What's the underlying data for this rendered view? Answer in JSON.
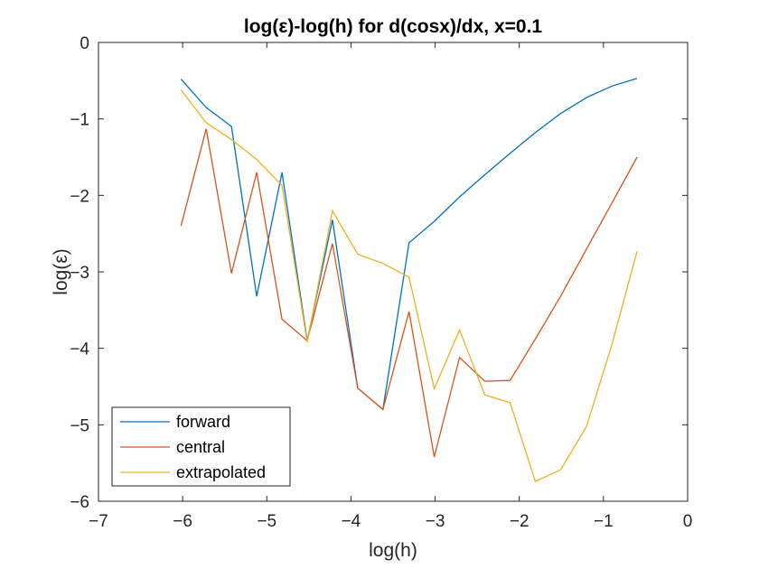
{
  "chart_data": {
    "type": "line",
    "title": "log(ε)-log(h) for d(cosx)/dx, x=0.1",
    "xlabel": "log(h)",
    "ylabel": "log(ε)",
    "xlim": [
      -7,
      0
    ],
    "ylim": [
      -6,
      0
    ],
    "xticks": [
      -7,
      -6,
      -5,
      -4,
      -3,
      -2,
      -1,
      0
    ],
    "yticks": [
      0,
      -1,
      -2,
      -3,
      -4,
      -5,
      -6
    ],
    "grid": false,
    "legend_position": "bottom-left",
    "x": [
      -6.02,
      -5.72,
      -5.42,
      -5.12,
      -4.82,
      -4.52,
      -4.22,
      -3.92,
      -3.62,
      -3.31,
      -3.01,
      -2.71,
      -2.41,
      -2.11,
      -1.81,
      -1.51,
      -1.2,
      -0.9,
      -0.6
    ],
    "series": [
      {
        "name": "forward",
        "color": "#0072BD",
        "values": [
          -0.48,
          -0.85,
          -1.1,
          -3.32,
          -1.7,
          -3.9,
          -2.32,
          -4.52,
          -4.8,
          -2.62,
          -2.34,
          -2.02,
          -1.73,
          -1.45,
          -1.18,
          -0.93,
          -0.72,
          -0.57,
          -0.47
        ]
      },
      {
        "name": "central",
        "color": "#D95319",
        "values": [
          -2.4,
          -1.13,
          -3.02,
          -1.7,
          -3.62,
          -3.9,
          -2.63,
          -4.52,
          -4.8,
          -3.52,
          -5.42,
          -4.12,
          -4.43,
          -4.42,
          -3.88,
          -3.32,
          -2.7,
          -2.1,
          -1.5
        ]
      },
      {
        "name": "extrapolated",
        "color": "#EDB120",
        "values": [
          -0.62,
          -1.05,
          -1.27,
          -1.53,
          -1.87,
          -3.92,
          -2.2,
          -2.77,
          -2.89,
          -3.07,
          -4.53,
          -3.76,
          -4.61,
          -4.71,
          -5.74,
          -5.59,
          -5.02,
          -3.95,
          -2.73
        ]
      }
    ]
  }
}
